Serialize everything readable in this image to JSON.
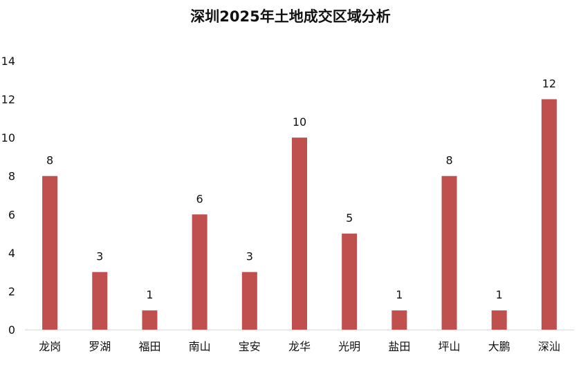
{
  "chart_data": {
    "type": "bar",
    "title": "深圳2025年土地成交区域分析",
    "categories": [
      "龙岗",
      "罗湖",
      "福田",
      "南山",
      "宝安",
      "龙华",
      "光明",
      "盐田",
      "坪山",
      "大鹏",
      "深汕"
    ],
    "values": [
      8,
      3,
      1,
      6,
      3,
      10,
      5,
      1,
      8,
      1,
      12
    ],
    "ylim": [
      0,
      14
    ],
    "yticks": [
      0,
      2,
      4,
      6,
      8,
      10,
      12,
      14
    ],
    "grid": false,
    "legend": "none",
    "bar_color": "#C0504D",
    "axis_color": "#D9D9D9"
  }
}
